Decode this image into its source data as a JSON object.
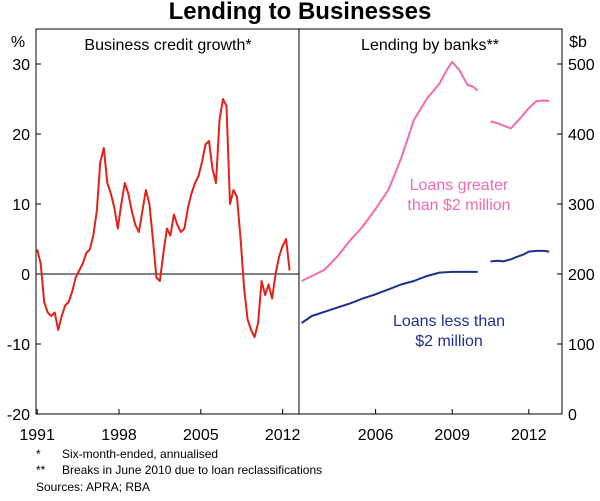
{
  "title": "Lending to Businesses",
  "notes": {
    "note1_marker": "*",
    "note1_text": "Six-month-ended, annualised",
    "note2_marker": "**",
    "note2_text": "Breaks in June 2010 due to loan reclassifications",
    "sources": "Sources: APRA; RBA"
  },
  "colors": {
    "red": "#e0241c",
    "pink": "#f06bb0",
    "navy": "#1f2f8f",
    "axis": "#000000"
  },
  "chart_data": [
    {
      "type": "line",
      "title": "Business credit growth*",
      "unit": "%",
      "ylim": [
        -20,
        35
      ],
      "yticks": [
        -20,
        -10,
        0,
        10,
        20,
        30
      ],
      "xlim": [
        1990.9,
        2013.4
      ],
      "xticks": [
        {
          "x": 1991,
          "label": "1991"
        },
        {
          "x": 1998,
          "label": "1998"
        },
        {
          "x": 2005,
          "label": "2005"
        },
        {
          "x": 2012,
          "label": "2012"
        }
      ],
      "series": [
        {
          "color": "#e0241c",
          "x": [
            1991.0,
            1991.3,
            1991.6,
            1991.9,
            1992.2,
            1992.5,
            1992.8,
            1993.1,
            1993.4,
            1993.7,
            1994.0,
            1994.3,
            1994.6,
            1994.9,
            1995.2,
            1995.5,
            1995.8,
            1996.1,
            1996.4,
            1996.7,
            1997.0,
            1997.3,
            1997.6,
            1997.9,
            1998.2,
            1998.5,
            1998.8,
            1999.1,
            1999.4,
            1999.7,
            2000.0,
            2000.3,
            2000.6,
            2000.9,
            2001.2,
            2001.5,
            2001.8,
            2002.1,
            2002.4,
            2002.7,
            2003.0,
            2003.3,
            2003.6,
            2003.9,
            2004.2,
            2004.5,
            2004.8,
            2005.1,
            2005.4,
            2005.7,
            2006.0,
            2006.3,
            2006.6,
            2006.9,
            2007.2,
            2007.5,
            2007.8,
            2008.1,
            2008.4,
            2008.7,
            2009.0,
            2009.3,
            2009.6,
            2009.9,
            2010.2,
            2010.5,
            2010.8,
            2011.1,
            2011.4,
            2011.7,
            2012.0,
            2012.3,
            2012.6
          ],
          "values": [
            3.5,
            1.5,
            -4.0,
            -5.5,
            -6.0,
            -5.5,
            -8.0,
            -6.0,
            -4.5,
            -4.0,
            -2.5,
            -0.5,
            0.5,
            1.5,
            3.0,
            3.5,
            5.5,
            9.0,
            16.0,
            18.0,
            13.0,
            11.5,
            9.5,
            6.5,
            10.0,
            13.0,
            11.5,
            9.0,
            7.0,
            6.0,
            9.0,
            12.0,
            10.0,
            5.0,
            -0.5,
            -1.0,
            3.0,
            6.5,
            5.5,
            8.5,
            7.0,
            6.0,
            6.5,
            9.5,
            11.5,
            13.0,
            14.0,
            16.0,
            18.5,
            19.0,
            15.0,
            13.0,
            22.0,
            25.0,
            24.0,
            10.0,
            12.0,
            11.0,
            5.0,
            -2.0,
            -6.5,
            -8.0,
            -9.0,
            -7.0,
            -1.0,
            -3.0,
            -1.5,
            -3.5,
            0.0,
            2.5,
            4.0,
            5.0,
            0.5
          ]
        }
      ]
    },
    {
      "type": "line",
      "title": "Lending by banks**",
      "unit": "$b",
      "ylim": [
        0,
        550
      ],
      "yticks": [
        0,
        100,
        200,
        300,
        400,
        500
      ],
      "xlim": [
        2003.0,
        2013.3
      ],
      "xticks": [
        {
          "x": 2006,
          "label": "2006"
        },
        {
          "x": 2009,
          "label": "2009"
        },
        {
          "x": 2012,
          "label": "2012"
        }
      ],
      "series": [
        {
          "name": "Loans greater than $2 million",
          "label_lines": [
            "Loans greater",
            "than $2 million"
          ],
          "color": "#f06bb0",
          "segments": [
            {
              "x": [
                2003.1,
                2003.5,
                2004.0,
                2004.5,
                2005.0,
                2005.5,
                2006.0,
                2006.5,
                2007.0,
                2007.5,
                2008.0,
                2008.5,
                2008.8,
                2009.0,
                2009.3,
                2009.6,
                2009.8,
                2010.0
              ],
              "values": [
                190,
                197,
                206,
                225,
                248,
                268,
                293,
                320,
                365,
                420,
                450,
                472,
                492,
                503,
                490,
                470,
                468,
                462
              ]
            },
            {
              "x": [
                2010.5,
                2010.8,
                2011.0,
                2011.3,
                2011.5,
                2011.8,
                2012.0,
                2012.3,
                2012.6,
                2012.8
              ],
              "values": [
                418,
                415,
                412,
                408,
                416,
                428,
                437,
                447,
                448,
                447
              ]
            }
          ]
        },
        {
          "name": "Loans less than $2 million",
          "label_lines": [
            "Loans less than",
            "$2 million"
          ],
          "color": "#1f2f8f",
          "segments": [
            {
              "x": [
                2003.1,
                2003.5,
                2004.0,
                2004.5,
                2005.0,
                2005.5,
                2006.0,
                2006.5,
                2007.0,
                2007.5,
                2008.0,
                2008.5,
                2009.0,
                2009.5,
                2010.0
              ],
              "values": [
                130,
                140,
                146,
                152,
                158,
                165,
                171,
                178,
                185,
                190,
                197,
                202,
                203,
                203,
                203
              ]
            },
            {
              "x": [
                2010.5,
                2010.8,
                2011.0,
                2011.3,
                2011.5,
                2011.8,
                2012.0,
                2012.3,
                2012.6,
                2012.8
              ],
              "values": [
                218,
                219,
                218,
                221,
                224,
                228,
                232,
                233,
                233,
                232
              ]
            }
          ]
        }
      ]
    }
  ]
}
